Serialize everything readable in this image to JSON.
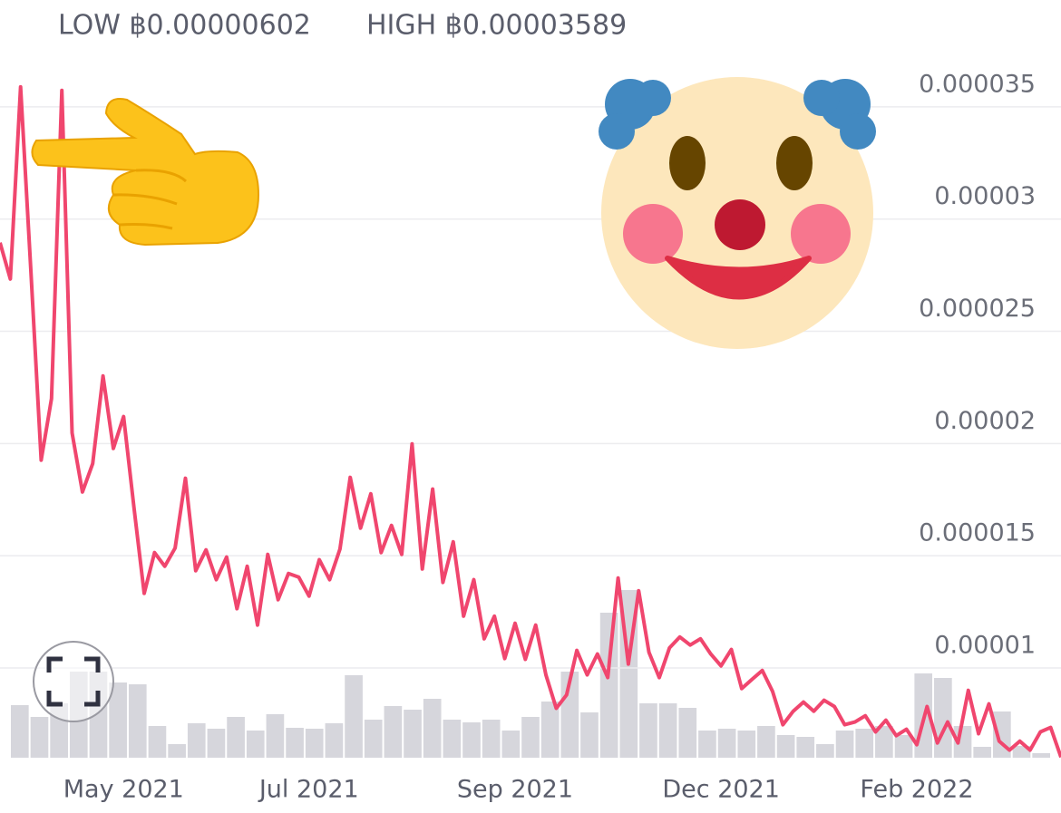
{
  "chart_data": {
    "type": "line",
    "low_label": "LOW ฿0.00000602",
    "high_label": "HIGH ฿0.00003589",
    "ylim": [
      6e-06,
      3.75e-05
    ],
    "yticks": [
      1e-05,
      1.5e-05,
      2e-05,
      2.5e-05,
      3e-05,
      3.5e-05
    ],
    "grid": true,
    "xlim": [
      0,
      103
    ],
    "xticks": [
      {
        "value": 12,
        "label": "May 2021"
      },
      {
        "value": 30,
        "label": "Jul 2021"
      },
      {
        "value": 50,
        "label": "Sep 2021"
      },
      {
        "value": 70,
        "label": "Dec 2021"
      },
      {
        "value": 89,
        "label": "Feb 2022"
      }
    ],
    "series": [
      {
        "color": "#f0466e",
        "values": [
          2.895e-05,
          2.733e-05,
          3.589e-05,
          2.765e-05,
          1.926e-05,
          2.2e-05,
          3.573e-05,
          2.047e-05,
          1.784e-05,
          1.91e-05,
          2.301e-05,
          1.978e-05,
          2.12e-05,
          1.716e-05,
          1.332e-05,
          1.514e-05,
          1.453e-05,
          1.534e-05,
          1.845e-05,
          1.433e-05,
          1.526e-05,
          1.393e-05,
          1.494e-05,
          1.264e-05,
          1.453e-05,
          1.191e-05,
          1.506e-05,
          1.304e-05,
          1.421e-05,
          1.405e-05,
          1.32e-05,
          1.482e-05,
          1.393e-05,
          1.53e-05,
          1.849e-05,
          1.623e-05,
          1.776e-05,
          1.514e-05,
          1.635e-05,
          1.506e-05,
          1.998e-05,
          1.441e-05,
          1.797e-05,
          1.381e-05,
          1.562e-05,
          1.231e-05,
          1.393e-05,
          1.13e-05,
          1.231e-05,
          1.042e-05,
          1.199e-05,
          1.038e-05,
          1.191e-05,
          9.69e-06,
          8.2e-06,
          8.8e-06,
          1.078e-05,
          9.69e-06,
          1.062e-05,
          9.57e-06,
          1.401e-05,
          1.017e-05,
          1.344e-05,
          1.07e-05,
          9.57e-06,
          1.09e-05,
          1.138e-05,
          1.102e-05,
          1.13e-05,
          1.062e-05,
          1.009e-05,
          1.082e-05,
          9.08e-06,
          9.49e-06,
          9.89e-06,
          8.96e-06,
          7.47e-06,
          8.07e-06,
          8.48e-06,
          8.07e-06,
          8.56e-06,
          8.28e-06,
          7.47e-06,
          7.59e-06,
          7.87e-06,
          7.15e-06,
          7.67e-06,
          6.98e-06,
          7.27e-06,
          6.58e-06,
          8.28e-06,
          6.66e-06,
          7.59e-06,
          6.66e-06,
          9e-06,
          7.07e-06,
          8.4e-06,
          6.74e-06,
          6.34e-06,
          6.74e-06,
          6.34e-06,
          7.15e-06,
          7.35e-06,
          6.02e-06
        ]
      }
    ],
    "volume": {
      "color": "#d6d6dc",
      "values": [
        58,
        45,
        60,
        95,
        95,
        83,
        81,
        35,
        15,
        38,
        32,
        45,
        30,
        48,
        33,
        32,
        38,
        91,
        42,
        57,
        53,
        65,
        42,
        39,
        42,
        30,
        45,
        62,
        95,
        50,
        160,
        185,
        60,
        60,
        55,
        30,
        32,
        30,
        35,
        25,
        23,
        15,
        30,
        32,
        35,
        25,
        93,
        88,
        35,
        12,
        51,
        13,
        5
      ]
    }
  }
}
